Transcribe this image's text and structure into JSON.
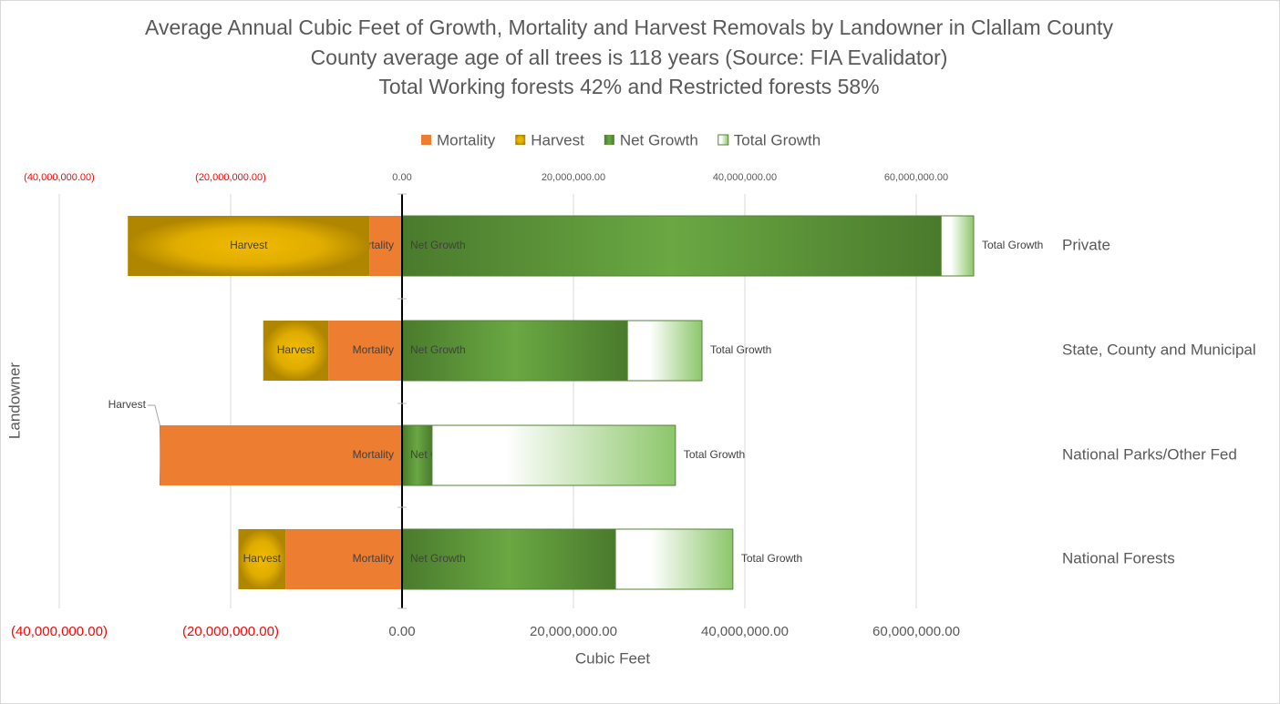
{
  "chart_data": {
    "type": "bar",
    "orientation": "horizontal",
    "stacked": true,
    "title": "Average Annual Cubic Feet of Growth, Mortality and Harvest Removals by Landowner in Clallam County",
    "subtitle": [
      "County average age of all trees is 118 years (Source: FIA Evalidator)",
      "Total Working forests 42% and Restricted forests 58%"
    ],
    "xlabel": "Cubic  Feet",
    "ylabel": "Landowner",
    "categories": [
      "Private",
      "State, County and Municipal",
      "National Parks/Other Fed",
      "National Forests"
    ],
    "series": [
      {
        "name": "Mortality",
        "color": "#ed7d31",
        "values": [
          -3800000,
          -8600000,
          -28200000,
          -13600000
        ]
      },
      {
        "name": "Harvest",
        "color": "#d4a300",
        "values": [
          -28200000,
          -7600000,
          -100000,
          -5500000
        ]
      },
      {
        "name": "Net Growth",
        "color": "#548235",
        "values": [
          62900000,
          26300000,
          3500000,
          24900000
        ]
      },
      {
        "name": "Total Growth",
        "color": "#a9d18e",
        "values": [
          3800000,
          8700000,
          28400000,
          13700000
        ]
      }
    ],
    "xlim": [
      -40000000,
      70000000
    ],
    "xticks": [
      {
        "value": -40000000,
        "label": "(40,000,000.00)"
      },
      {
        "value": -20000000,
        "label": "(20,000,000.00)"
      },
      {
        "value": 0,
        "label": "0.00"
      },
      {
        "value": 20000000,
        "label": "20,000,000.00"
      },
      {
        "value": 40000000,
        "label": "40,000,000.00"
      },
      {
        "value": 60000000,
        "label": "60,000,000.00"
      }
    ],
    "negative_label_color": "#ff0000",
    "grid": true,
    "legend": "top",
    "secondary_x_axis": true
  }
}
